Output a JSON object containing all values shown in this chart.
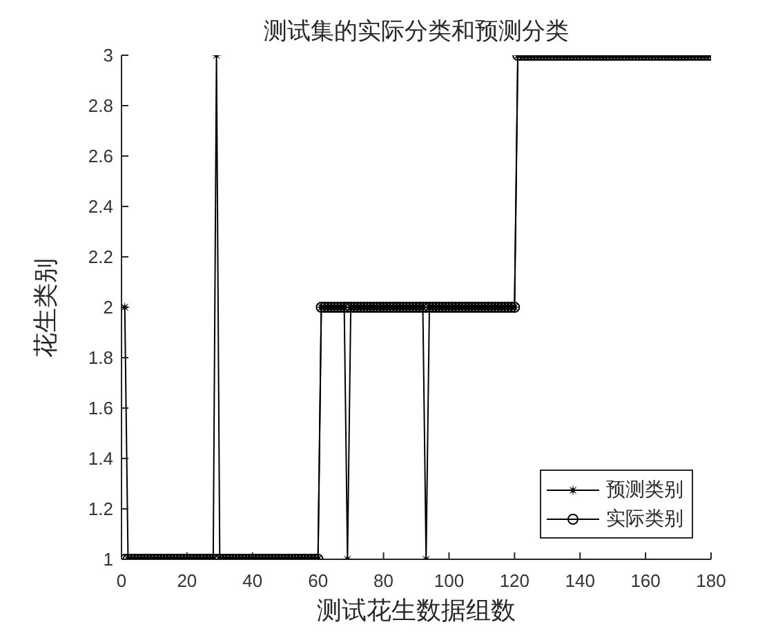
{
  "chart_data": {
    "type": "line",
    "title": "测试集的实际分类和预测分类",
    "xlabel": "测试花生数据组数",
    "ylabel": "花生类别",
    "x": [
      1,
      2,
      3,
      4,
      5,
      6,
      7,
      8,
      9,
      10,
      11,
      12,
      13,
      14,
      15,
      16,
      17,
      18,
      19,
      20,
      21,
      22,
      23,
      24,
      25,
      26,
      27,
      28,
      29,
      30,
      31,
      32,
      33,
      34,
      35,
      36,
      37,
      38,
      39,
      40,
      41,
      42,
      43,
      44,
      45,
      46,
      47,
      48,
      49,
      50,
      51,
      52,
      53,
      54,
      55,
      56,
      57,
      58,
      59,
      60,
      61,
      62,
      63,
      64,
      65,
      66,
      67,
      68,
      69,
      70,
      71,
      72,
      73,
      74,
      75,
      76,
      77,
      78,
      79,
      80,
      81,
      82,
      83,
      84,
      85,
      86,
      87,
      88,
      89,
      90,
      91,
      92,
      93,
      94,
      95,
      96,
      97,
      98,
      99,
      100,
      101,
      102,
      103,
      104,
      105,
      106,
      107,
      108,
      109,
      110,
      111,
      112,
      113,
      114,
      115,
      116,
      117,
      118,
      119,
      120,
      121,
      122,
      123,
      124,
      125,
      126,
      127,
      128,
      129,
      130,
      131,
      132,
      133,
      134,
      135,
      136,
      137,
      138,
      139,
      140,
      141,
      142,
      143,
      144,
      145,
      146,
      147,
      148,
      149,
      150,
      151,
      152,
      153,
      154,
      155,
      156,
      157,
      158,
      159,
      160,
      161,
      162,
      163,
      164,
      165,
      166,
      167,
      168,
      169,
      170,
      171,
      172,
      173,
      174,
      175,
      176,
      177,
      178,
      179,
      180
    ],
    "series": [
      {
        "name": "预测类别",
        "color": "#000000",
        "marker": "star",
        "values": [
          2,
          1,
          1,
          1,
          1,
          1,
          1,
          1,
          1,
          1,
          1,
          1,
          1,
          1,
          1,
          1,
          1,
          1,
          1,
          1,
          1,
          1,
          1,
          1,
          1,
          1,
          1,
          1,
          3,
          1,
          1,
          1,
          1,
          1,
          1,
          1,
          1,
          1,
          1,
          1,
          1,
          1,
          1,
          1,
          1,
          1,
          1,
          1,
          1,
          1,
          1,
          1,
          1,
          1,
          1,
          1,
          1,
          1,
          1,
          1,
          2,
          2,
          2,
          2,
          2,
          2,
          2,
          2,
          1,
          2,
          2,
          2,
          2,
          2,
          2,
          2,
          2,
          2,
          2,
          2,
          2,
          2,
          2,
          2,
          2,
          2,
          2,
          2,
          2,
          2,
          2,
          2,
          1,
          2,
          2,
          2,
          2,
          2,
          2,
          2,
          2,
          2,
          2,
          2,
          2,
          2,
          2,
          2,
          2,
          2,
          2,
          2,
          2,
          2,
          2,
          2,
          2,
          2,
          2,
          2,
          3,
          3,
          3,
          3,
          3,
          3,
          3,
          3,
          3,
          3,
          3,
          3,
          3,
          3,
          3,
          3,
          3,
          3,
          3,
          3,
          3,
          3,
          3,
          3,
          3,
          3,
          3,
          3,
          3,
          3,
          3,
          3,
          3,
          3,
          3,
          3,
          3,
          3,
          3,
          3,
          3,
          3,
          3,
          3,
          3,
          3,
          3,
          3,
          3,
          3,
          3,
          3,
          3,
          3,
          3,
          3,
          3,
          3,
          3,
          3
        ]
      },
      {
        "name": "实际类别",
        "color": "#000000",
        "marker": "circle",
        "values": [
          1,
          1,
          1,
          1,
          1,
          1,
          1,
          1,
          1,
          1,
          1,
          1,
          1,
          1,
          1,
          1,
          1,
          1,
          1,
          1,
          1,
          1,
          1,
          1,
          1,
          1,
          1,
          1,
          1,
          1,
          1,
          1,
          1,
          1,
          1,
          1,
          1,
          1,
          1,
          1,
          1,
          1,
          1,
          1,
          1,
          1,
          1,
          1,
          1,
          1,
          1,
          1,
          1,
          1,
          1,
          1,
          1,
          1,
          1,
          1,
          2,
          2,
          2,
          2,
          2,
          2,
          2,
          2,
          2,
          2,
          2,
          2,
          2,
          2,
          2,
          2,
          2,
          2,
          2,
          2,
          2,
          2,
          2,
          2,
          2,
          2,
          2,
          2,
          2,
          2,
          2,
          2,
          2,
          2,
          2,
          2,
          2,
          2,
          2,
          2,
          2,
          2,
          2,
          2,
          2,
          2,
          2,
          2,
          2,
          2,
          2,
          2,
          2,
          2,
          2,
          2,
          2,
          2,
          2,
          2,
          3,
          3,
          3,
          3,
          3,
          3,
          3,
          3,
          3,
          3,
          3,
          3,
          3,
          3,
          3,
          3,
          3,
          3,
          3,
          3,
          3,
          3,
          3,
          3,
          3,
          3,
          3,
          3,
          3,
          3,
          3,
          3,
          3,
          3,
          3,
          3,
          3,
          3,
          3,
          3,
          3,
          3,
          3,
          3,
          3,
          3,
          3,
          3,
          3,
          3,
          3,
          3,
          3,
          3,
          3,
          3,
          3,
          3,
          3,
          3
        ]
      }
    ],
    "xlim": [
      0,
      180
    ],
    "xticks": [
      0,
      20,
      40,
      60,
      80,
      100,
      120,
      140,
      160,
      180
    ],
    "ylim": [
      1,
      3
    ],
    "yticks": [
      1,
      1.2,
      1.4,
      1.6,
      1.8,
      2,
      2.2,
      2.4,
      2.6,
      2.8,
      3
    ],
    "legend": "bottom right"
  }
}
